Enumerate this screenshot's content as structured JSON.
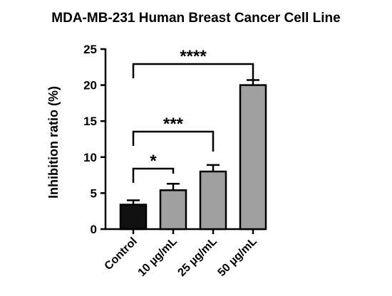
{
  "chart_data": {
    "type": "bar",
    "title": "MDA-MB-231 Human Breast Cancer Cell Line",
    "xlabel": "",
    "ylabel": "Inhibition ratio (%)",
    "ylim": [
      0,
      25
    ],
    "yticks": [
      "0",
      "5",
      "10",
      "15",
      "20",
      "25"
    ],
    "categories": [
      "Control",
      "10 µg/mL",
      "25 µg/mL",
      "50 µg/mL"
    ],
    "values": [
      3.4,
      5.4,
      8.0,
      20.0
    ],
    "errors": [
      0.6,
      0.9,
      0.9,
      0.7
    ],
    "bar_colors": [
      "#111111",
      "#a0a0a0",
      "#a0a0a0",
      "#a0a0a0"
    ],
    "grid": false,
    "significance": [
      {
        "from": 0,
        "to": 1,
        "label": "*"
      },
      {
        "from": 0,
        "to": 2,
        "label": "***"
      },
      {
        "from": 0,
        "to": 3,
        "label": "****"
      }
    ]
  }
}
